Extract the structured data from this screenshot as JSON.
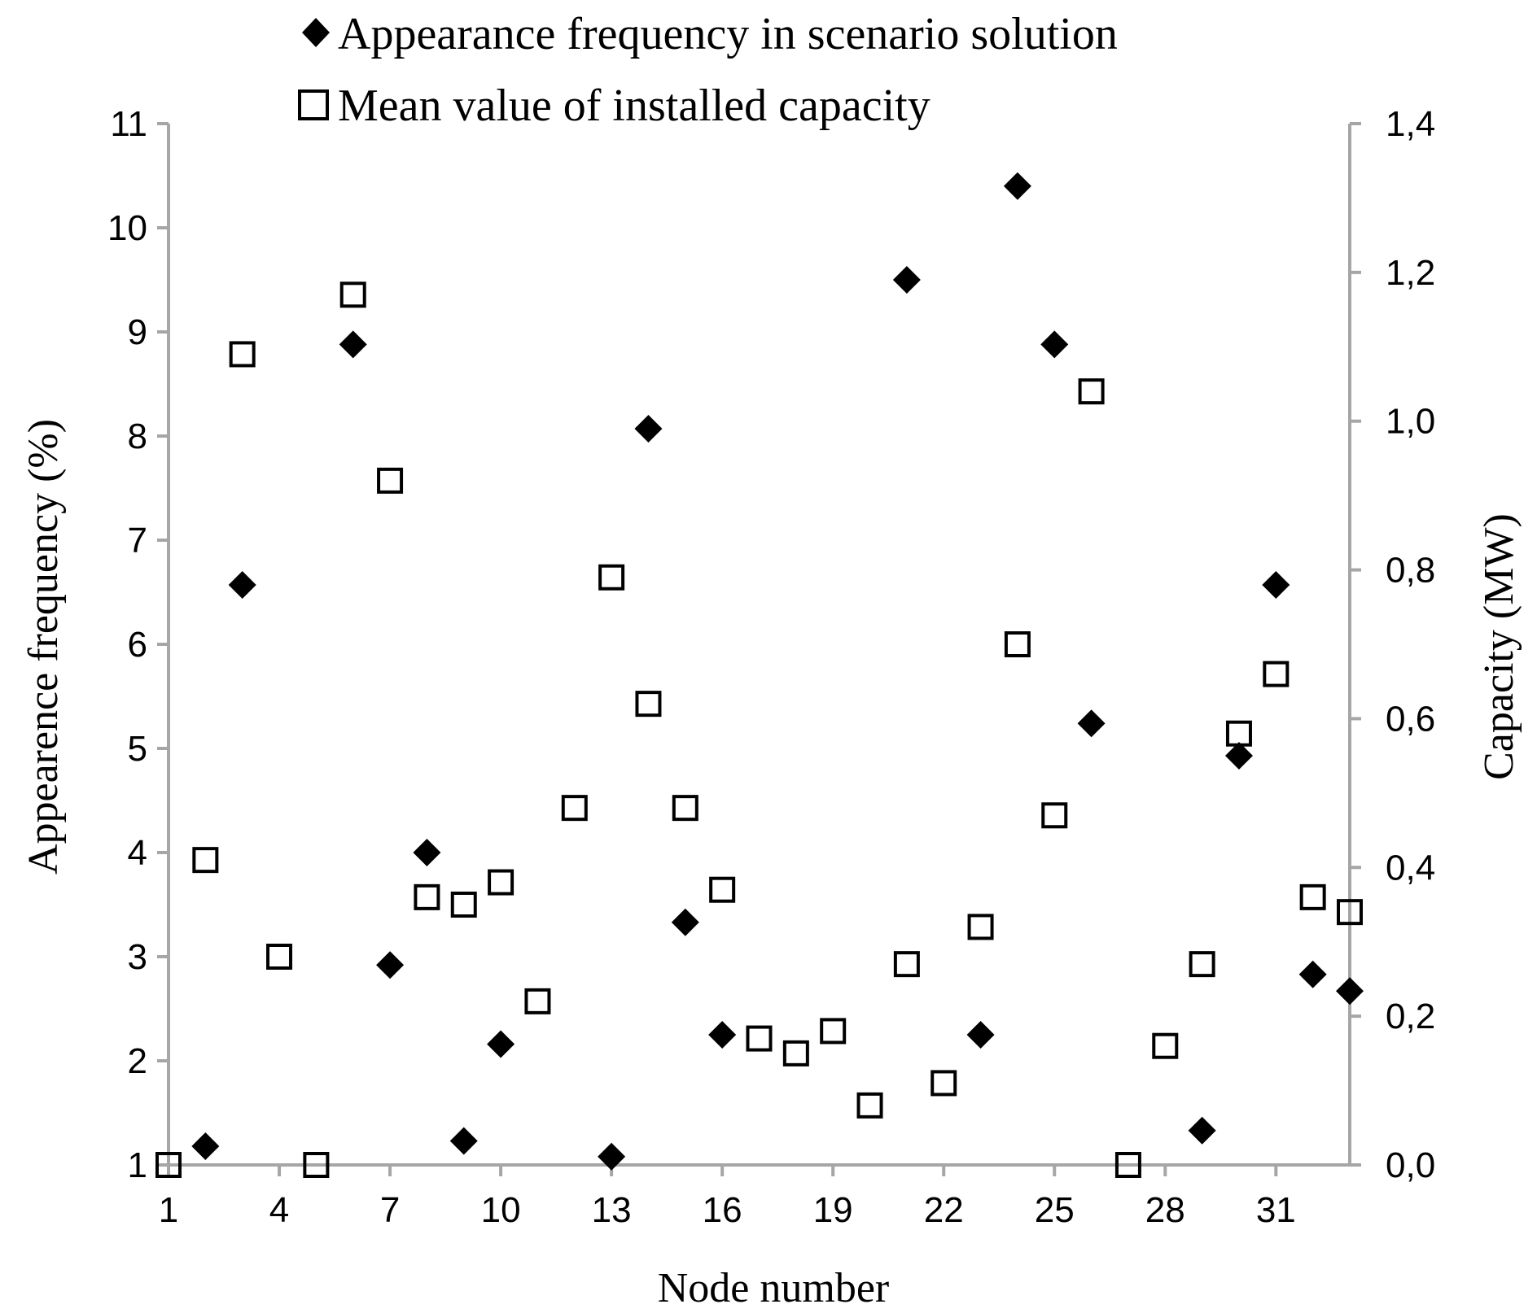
{
  "chart_data": {
    "type": "scatter",
    "xlabel": "Node number",
    "ylabel": "Appearence frequency (%)",
    "y2label": "Capacity (MW)",
    "xlim": [
      1,
      33
    ],
    "ylim": [
      1,
      11
    ],
    "y2lim": [
      0,
      1.4
    ],
    "x_ticks": [
      "1",
      "4",
      "7",
      "10",
      "13",
      "16",
      "19",
      "22",
      "25",
      "28",
      "31"
    ],
    "x_tick_values": [
      1,
      4,
      7,
      10,
      13,
      16,
      19,
      22,
      25,
      28,
      31
    ],
    "y_ticks": [
      "1",
      "2",
      "3",
      "4",
      "5",
      "6",
      "7",
      "8",
      "9",
      "10",
      "11"
    ],
    "y_tick_values": [
      1,
      2,
      3,
      4,
      5,
      6,
      7,
      8,
      9,
      10,
      11
    ],
    "y2_ticks": [
      "0,0",
      "0,2",
      "0,4",
      "0,6",
      "0,8",
      "1,0",
      "1,2",
      "1,4"
    ],
    "y2_tick_values": [
      0,
      0.2,
      0.4,
      0.6,
      0.8,
      1.0,
      1.2,
      1.4
    ],
    "grid": false,
    "legend": "top",
    "series": [
      {
        "name": "Appearance frequency in scenario solution",
        "marker": "filled-diamond",
        "axis": "left",
        "color": "#000000",
        "points": [
          [
            2,
            1.18
          ],
          [
            3,
            6.57
          ],
          [
            6,
            8.88
          ],
          [
            7,
            2.92
          ],
          [
            8,
            4.0
          ],
          [
            9,
            1.23
          ],
          [
            10,
            2.16
          ],
          [
            13,
            1.08
          ],
          [
            14,
            8.07
          ],
          [
            15,
            3.33
          ],
          [
            16,
            2.25
          ],
          [
            21,
            9.5
          ],
          [
            23,
            2.25
          ],
          [
            24,
            10.4
          ],
          [
            25,
            8.88
          ],
          [
            26,
            5.24
          ],
          [
            29,
            1.33
          ],
          [
            30,
            4.93
          ],
          [
            31,
            6.57
          ],
          [
            32,
            2.83
          ],
          [
            33,
            2.67
          ]
        ]
      },
      {
        "name": "Mean value of installed capacity",
        "marker": "open-square",
        "axis": "right",
        "color": "#000000",
        "points": [
          [
            1,
            0.0
          ],
          [
            2,
            0.41
          ],
          [
            3,
            1.09
          ],
          [
            4,
            0.28
          ],
          [
            5,
            0.0
          ],
          [
            6,
            1.17
          ],
          [
            7,
            0.92
          ],
          [
            8,
            0.36
          ],
          [
            9,
            0.35
          ],
          [
            10,
            0.38
          ],
          [
            11,
            0.22
          ],
          [
            12,
            0.48
          ],
          [
            13,
            0.79
          ],
          [
            14,
            0.62
          ],
          [
            15,
            0.48
          ],
          [
            16,
            0.37
          ],
          [
            17,
            0.17
          ],
          [
            18,
            0.15
          ],
          [
            19,
            0.18
          ],
          [
            20,
            0.08
          ],
          [
            21,
            0.27
          ],
          [
            22,
            0.11
          ],
          [
            23,
            0.32
          ],
          [
            24,
            0.7
          ],
          [
            25,
            0.47
          ],
          [
            26,
            1.04
          ],
          [
            27,
            0.0
          ],
          [
            28,
            0.16
          ],
          [
            29,
            0.27
          ],
          [
            30,
            0.58
          ],
          [
            31,
            0.66
          ],
          [
            32,
            0.36
          ],
          [
            33,
            0.34
          ]
        ]
      }
    ]
  }
}
